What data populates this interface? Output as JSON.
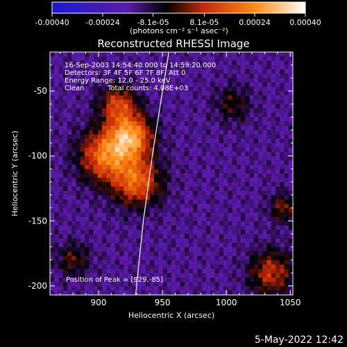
{
  "chart_data": {
    "type": "heatmap",
    "title": "Reconstructed RHESSI Image",
    "xlabel": "Heliocentric X (arcsec)",
    "ylabel": "Heliocentric Y (arcsec)",
    "xlim": [
      862,
      1052
    ],
    "ylim": [
      -207,
      -20
    ],
    "x_ticks": [
      900,
      950,
      1000,
      1050
    ],
    "x_tick_labels": [
      "900",
      "950",
      "1000",
      "1050"
    ],
    "y_ticks": [
      -50,
      -100,
      -150,
      -200
    ],
    "y_tick_labels": [
      "-50",
      "-100",
      "-150",
      "-200"
    ],
    "colorbar": {
      "range": [
        -0.0004,
        0.0004
      ],
      "tick_labels": [
        "-0.00040",
        "-0.00024",
        "-8.1e-05",
        "8.1e-05",
        "0.00024",
        "0.00040"
      ],
      "unit_label": "(photons cm⁻² s⁻¹ asec⁻²)",
      "colors": [
        "#1818d8",
        "#5c1aa8",
        "#000000",
        "#c82808",
        "#ff8c10",
        "#ffffff"
      ]
    },
    "annotations": {
      "time": "16-Sep-2003 14:54:40.000 to 14:59:20.000",
      "detectors": "Detectors: 3F 4F 5F 6F 7F 8F, Att 0",
      "energy": "Energy Range: 12.0 - 25.0 keV",
      "clean": "Clean",
      "counts": "Total counts: 4.08E+03",
      "peak": "Position of Peak = [929,-85]"
    },
    "peak_position": [
      929,
      -85
    ],
    "bright_sources": [
      {
        "x": 925,
        "y": -85,
        "amplitude": 0.00038,
        "width": 12
      },
      {
        "x": 905,
        "y": -100,
        "amplitude": 0.00032,
        "width": 14
      },
      {
        "x": 930,
        "y": -120,
        "amplitude": 0.0003,
        "width": 13
      },
      {
        "x": 915,
        "y": -60,
        "amplitude": 0.00024,
        "width": 10
      },
      {
        "x": 1035,
        "y": -190,
        "amplitude": 0.00022,
        "width": 12
      },
      {
        "x": 1045,
        "y": -140,
        "amplitude": 0.00016,
        "width": 8
      },
      {
        "x": 1005,
        "y": -60,
        "amplitude": 0.00012,
        "width": 10
      },
      {
        "x": 880,
        "y": -180,
        "amplitude": 0.00014,
        "width": 9
      }
    ],
    "limb_curve": [
      [
        929,
        -207
      ],
      [
        935,
        -150
      ],
      [
        942,
        -100
      ],
      [
        950,
        -50
      ],
      [
        955,
        -20
      ]
    ]
  },
  "footer": {
    "date": "5-May-2022 12:42"
  }
}
